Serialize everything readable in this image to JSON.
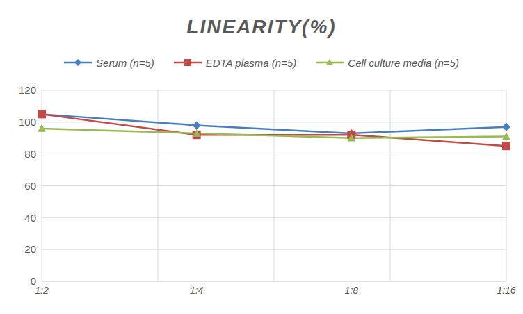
{
  "chart_data": {
    "type": "line",
    "title": "LINEARITY(%)",
    "categories": [
      "1:2",
      "1:4",
      "1:8",
      "1:16"
    ],
    "series": [
      {
        "name": "Serum (n=5)",
        "color": "#4a7ebb",
        "marker": "diamond",
        "values": [
          105,
          98,
          93,
          97
        ]
      },
      {
        "name": "EDTA plasma (n=5)",
        "color": "#be4b48",
        "marker": "square",
        "values": [
          105,
          92,
          92,
          85
        ]
      },
      {
        "name": "Cell culture media (n=5)",
        "color": "#98b954",
        "marker": "triangle",
        "values": [
          96,
          93,
          90,
          91
        ]
      }
    ],
    "ylim": [
      0,
      120
    ],
    "yticks": [
      0,
      20,
      40,
      60,
      80,
      100,
      120
    ],
    "grid": true,
    "legend": "top"
  }
}
